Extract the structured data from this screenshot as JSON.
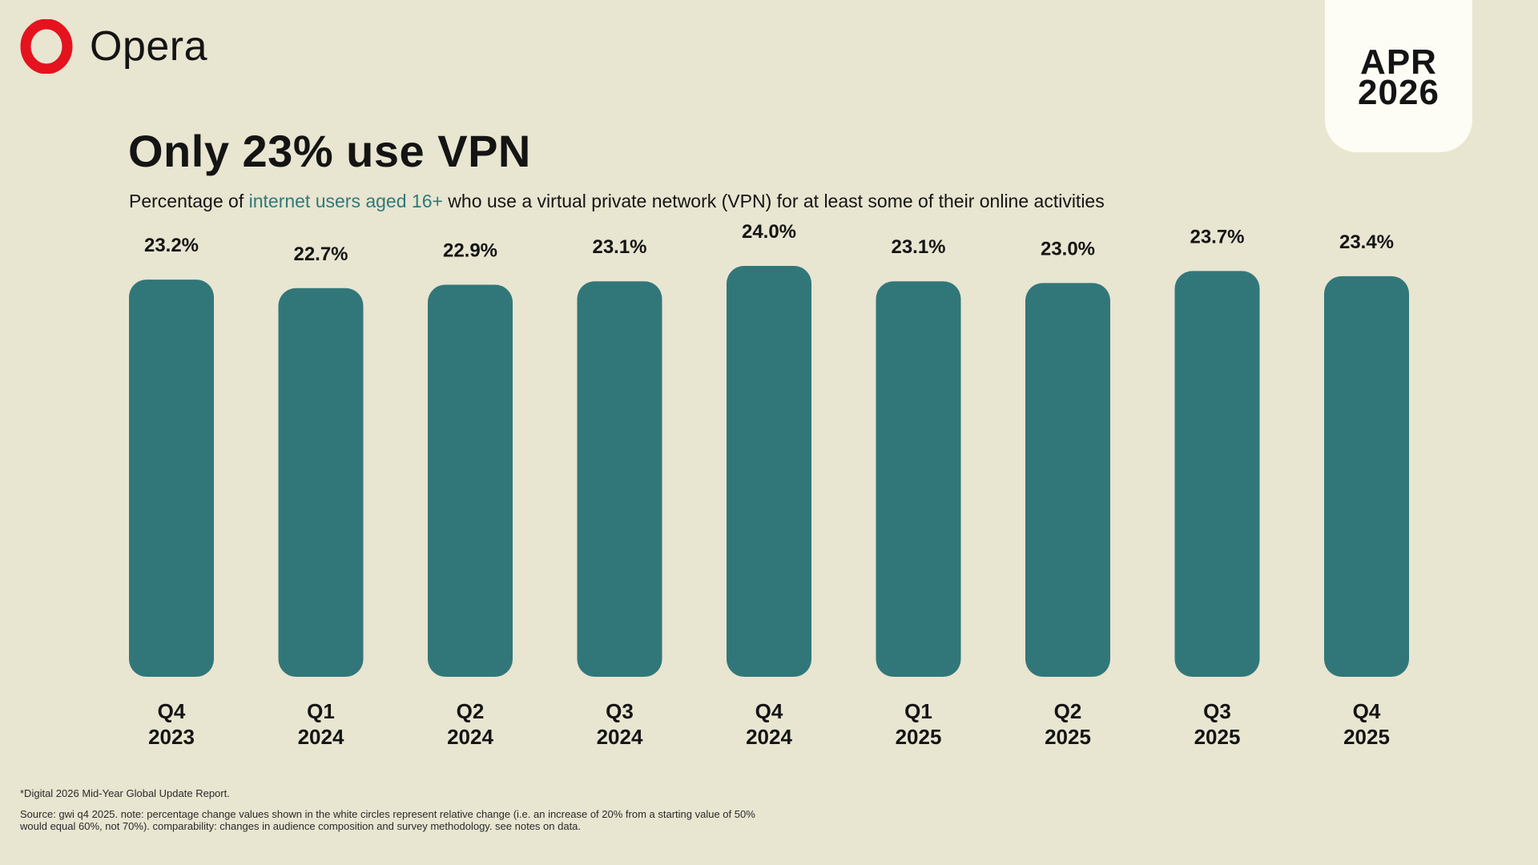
{
  "brand": {
    "name": "Opera"
  },
  "date_card": {
    "line1": "APR",
    "line2": "2026"
  },
  "header": {
    "title": "Only 23% use VPN",
    "subtitle_pre": "Percentage of ",
    "subtitle_highlight": "internet users aged 16+",
    "subtitle_post": " who use a virtual private network (VPN) for at least some of their online activities"
  },
  "colors": {
    "background": "#E8E5D1",
    "bar": "#31777A",
    "highlight_text": "#2E7A7A",
    "logo_red": "#E4131E"
  },
  "chart_data": {
    "type": "bar",
    "categories": [
      [
        "Q4",
        "2023"
      ],
      [
        "Q1",
        "2024"
      ],
      [
        "Q2",
        "2024"
      ],
      [
        "Q3",
        "2024"
      ],
      [
        "Q4",
        "2024"
      ],
      [
        "Q1",
        "2025"
      ],
      [
        "Q2",
        "2025"
      ],
      [
        "Q3",
        "2025"
      ],
      [
        "Q4",
        "2025"
      ]
    ],
    "values": [
      23.2,
      22.7,
      22.9,
      23.1,
      24.0,
      23.1,
      23.0,
      23.7,
      23.4
    ],
    "value_labels": [
      "23.2%",
      "22.7%",
      "22.9%",
      "23.1%",
      "24.0%",
      "23.1%",
      "23.0%",
      "23.7%",
      "23.4%"
    ],
    "ylim": [
      0,
      24.0
    ],
    "grid": false
  },
  "footer": {
    "footnote": "*Digital 2026 Mid-Year Global Update Report.",
    "source": "Source: gwi q4 2025. note: percentage change values shown in the white circles represent relative change (i.e. an increase of 20% from a starting value of 50% would equal 60%, not 70%). comparability: changes in audience composition and survey methodology. see notes on data."
  }
}
